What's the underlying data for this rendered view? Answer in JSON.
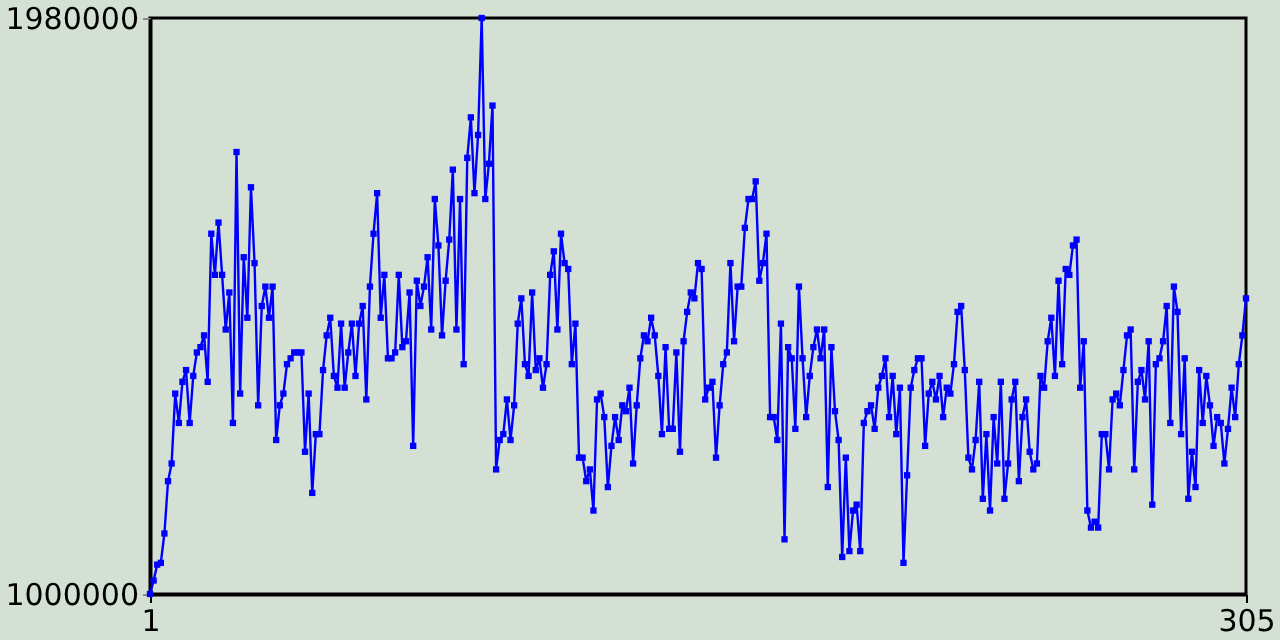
{
  "chart_data": {
    "type": "line",
    "marker": "square",
    "grid": false,
    "xlim": [
      1,
      305
    ],
    "xticks": [
      1,
      305
    ],
    "ylim": [
      1000000,
      1980000
    ],
    "yticks": [
      1000000,
      1980000
    ],
    "series": [
      {
        "color": "#0000ff",
        "x": [
          1,
          2,
          3,
          4,
          5,
          6,
          7,
          8,
          9,
          10,
          11,
          12,
          13,
          14,
          15,
          16,
          17,
          18,
          19,
          20,
          21,
          22,
          23,
          24,
          25,
          26,
          27,
          28,
          29,
          30,
          31,
          32,
          33,
          34,
          35,
          36,
          37,
          38,
          39,
          40,
          41,
          42,
          43,
          44,
          45,
          46,
          47,
          48,
          49,
          50,
          51,
          52,
          53,
          54,
          55,
          56,
          57,
          58,
          59,
          60,
          61,
          62,
          63,
          64,
          65,
          66,
          67,
          68,
          69,
          70,
          71,
          72,
          73,
          74,
          75,
          76,
          77,
          78,
          79,
          80,
          81,
          82,
          83,
          84,
          85,
          86,
          87,
          88,
          89,
          90,
          91,
          92,
          93,
          94,
          95,
          96,
          97,
          98,
          99,
          100,
          101,
          102,
          103,
          104,
          105,
          106,
          107,
          108,
          109,
          110,
          111,
          112,
          113,
          114,
          115,
          116,
          117,
          118,
          119,
          120,
          121,
          122,
          123,
          124,
          125,
          126,
          127,
          128,
          129,
          130,
          131,
          132,
          133,
          134,
          135,
          136,
          137,
          138,
          139,
          140,
          141,
          142,
          143,
          144,
          145,
          146,
          147,
          148,
          149,
          150,
          151,
          152,
          153,
          154,
          155,
          156,
          157,
          158,
          159,
          160,
          161,
          162,
          163,
          164,
          165,
          166,
          167,
          168,
          169,
          170,
          171,
          172,
          173,
          174,
          175,
          176,
          177,
          178,
          179,
          180,
          181,
          182,
          183,
          184,
          185,
          186,
          187,
          188,
          189,
          190,
          191,
          192,
          193,
          194,
          195,
          196,
          197,
          198,
          199,
          200,
          201,
          202,
          203,
          204,
          205,
          206,
          207,
          208,
          209,
          210,
          211,
          212,
          213,
          214,
          215,
          216,
          217,
          218,
          219,
          220,
          221,
          222,
          223,
          224,
          225,
          226,
          227,
          228,
          229,
          230,
          231,
          232,
          233,
          234,
          235,
          236,
          237,
          238,
          239,
          240,
          241,
          242,
          243,
          244,
          245,
          246,
          247,
          248,
          249,
          250,
          251,
          252,
          253,
          254,
          255,
          256,
          257,
          258,
          259,
          260,
          261,
          262,
          263,
          264,
          265,
          266,
          267,
          268,
          269,
          270,
          271,
          272,
          273,
          274,
          275,
          276,
          277,
          278,
          279,
          280,
          281,
          282,
          283,
          284,
          285,
          286,
          287,
          288,
          289,
          290,
          291,
          292,
          293,
          294,
          295,
          296,
          297,
          298,
          299,
          300,
          301,
          302,
          303,
          304,
          305
        ],
        "values": [
          1000000,
          1023000,
          1050000,
          1053000,
          1103000,
          1192000,
          1222000,
          1341000,
          1291000,
          1361000,
          1381000,
          1291000,
          1371000,
          1411000,
          1420000,
          1440000,
          1361000,
          1613000,
          1543000,
          1632000,
          1543000,
          1450000,
          1513000,
          1291000,
          1752000,
          1341000,
          1573000,
          1470000,
          1692000,
          1563000,
          1321000,
          1490000,
          1523000,
          1470000,
          1523000,
          1262000,
          1321000,
          1341000,
          1391000,
          1401000,
          1411000,
          1411000,
          1411000,
          1242000,
          1341000,
          1172000,
          1272000,
          1272000,
          1381000,
          1440000,
          1470000,
          1371000,
          1351000,
          1460000,
          1351000,
          1411000,
          1460000,
          1371000,
          1460000,
          1490000,
          1331000,
          1523000,
          1613000,
          1682000,
          1470000,
          1543000,
          1401000,
          1401000,
          1411000,
          1543000,
          1420000,
          1430000,
          1513000,
          1252000,
          1533000,
          1490000,
          1523000,
          1573000,
          1450000,
          1672000,
          1593000,
          1440000,
          1533000,
          1603000,
          1722000,
          1450000,
          1672000,
          1391000,
          1742000,
          1811000,
          1682000,
          1781000,
          1980000,
          1672000,
          1732000,
          1831000,
          1212000,
          1262000,
          1272000,
          1331000,
          1262000,
          1321000,
          1460000,
          1503000,
          1391000,
          1371000,
          1513000,
          1381000,
          1401000,
          1351000,
          1391000,
          1543000,
          1583000,
          1450000,
          1613000,
          1563000,
          1553000,
          1391000,
          1460000,
          1232000,
          1232000,
          1192000,
          1212000,
          1142000,
          1331000,
          1341000,
          1301000,
          1182000,
          1252000,
          1301000,
          1262000,
          1321000,
          1311000,
          1351000,
          1222000,
          1321000,
          1401000,
          1440000,
          1430000,
          1470000,
          1440000,
          1371000,
          1272000,
          1420000,
          1281000,
          1281000,
          1411000,
          1242000,
          1430000,
          1480000,
          1513000,
          1503000,
          1563000,
          1553000,
          1331000,
          1351000,
          1361000,
          1232000,
          1321000,
          1391000,
          1411000,
          1563000,
          1430000,
          1523000,
          1523000,
          1623000,
          1672000,
          1672000,
          1702000,
          1533000,
          1563000,
          1613000,
          1301000,
          1301000,
          1262000,
          1460000,
          1093000,
          1420000,
          1401000,
          1281000,
          1523000,
          1401000,
          1301000,
          1371000,
          1420000,
          1450000,
          1401000,
          1450000,
          1182000,
          1420000,
          1311000,
          1262000,
          1063000,
          1232000,
          1073000,
          1142000,
          1152000,
          1073000,
          1291000,
          1311000,
          1321000,
          1281000,
          1351000,
          1371000,
          1401000,
          1301000,
          1371000,
          1272000,
          1351000,
          1053000,
          1202000,
          1351000,
          1381000,
          1401000,
          1401000,
          1252000,
          1341000,
          1361000,
          1331000,
          1371000,
          1301000,
          1351000,
          1341000,
          1391000,
          1480000,
          1490000,
          1381000,
          1232000,
          1212000,
          1262000,
          1361000,
          1162000,
          1272000,
          1142000,
          1301000,
          1222000,
          1361000,
          1162000,
          1222000,
          1331000,
          1361000,
          1192000,
          1301000,
          1331000,
          1242000,
          1212000,
          1222000,
          1371000,
          1351000,
          1430000,
          1470000,
          1371000,
          1533000,
          1391000,
          1553000,
          1543000,
          1593000,
          1603000,
          1351000,
          1430000,
          1142000,
          1113000,
          1123000,
          1113000,
          1272000,
          1272000,
          1212000,
          1331000,
          1341000,
          1321000,
          1381000,
          1440000,
          1450000,
          1212000,
          1361000,
          1381000,
          1331000,
          1430000,
          1152000,
          1391000,
          1401000,
          1430000,
          1490000,
          1291000,
          1523000,
          1480000,
          1272000,
          1401000,
          1162000,
          1242000,
          1182000,
          1381000,
          1291000,
          1371000,
          1321000,
          1252000,
          1301000,
          1291000,
          1222000,
          1281000,
          1351000,
          1301000,
          1391000,
          1440000,
          1503000
        ]
      }
    ]
  }
}
